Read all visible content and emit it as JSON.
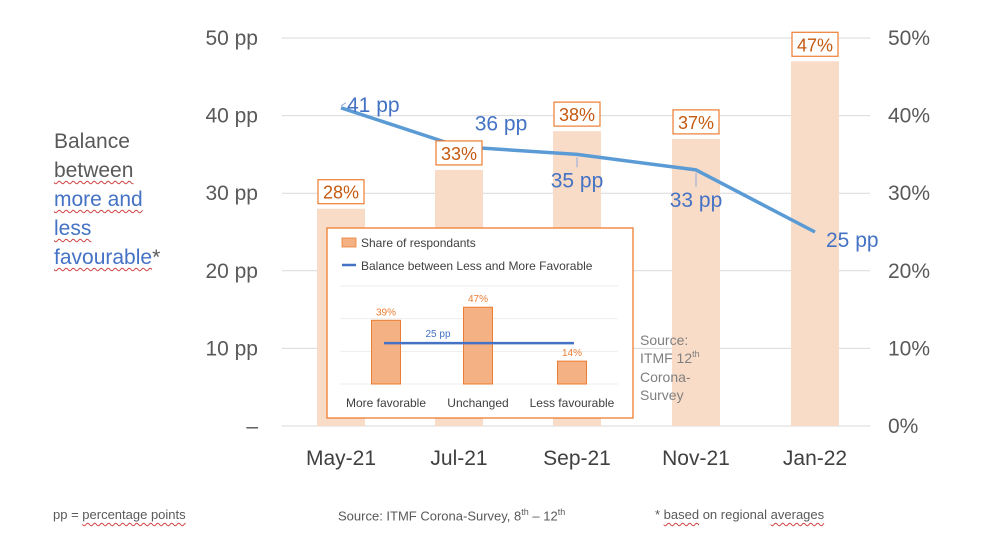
{
  "chart_data": {
    "type": "bar+line",
    "categories": [
      "May-21",
      "Jul-21",
      "Sep-21",
      "Nov-21",
      "Jan-22"
    ],
    "series": [
      {
        "values": [
          28,
          33,
          38,
          37,
          47
        ],
        "value_labels": [
          "28%",
          "33%",
          "38%",
          "37%",
          "47%"
        ],
        "axis": "right",
        "color": "#f9dcc8",
        "label_color": "#c55a11",
        "label_border": "#ed7d31"
      },
      {
        "values": [
          41,
          36,
          35,
          33,
          25
        ],
        "value_labels": [
          "41 pp",
          "36 pp",
          "35 pp",
          "33 pp",
          "25 pp"
        ],
        "axis": "left",
        "color": "#5b9bd5",
        "label_color": "#4472c4"
      }
    ],
    "left_axis": {
      "ticks": [
        "–",
        "10 pp",
        "20 pp",
        "30 pp",
        "40 pp",
        "50 pp"
      ],
      "ylim": [
        0,
        50
      ]
    },
    "right_axis": {
      "ticks": [
        "0%",
        "10%",
        "20%",
        "30%",
        "40%",
        "50%"
      ],
      "ylim": [
        0,
        50
      ]
    },
    "ylabel": {
      "line1": "Balance",
      "line2": "between",
      "line3": "more and",
      "line4": "less",
      "line5": "favourable",
      "suffix": "*"
    },
    "grid": true,
    "grid_color": "#d9d9d9",
    "inset": {
      "type": "bar+line",
      "legend": [
        {
          "label": "Share of respondants",
          "color": "#f4b183",
          "border": "#ed7d31"
        },
        {
          "label": "Balance between Less and More Favorable",
          "color": "#4472c4"
        }
      ],
      "categories": [
        "More favorable",
        "Unchanged",
        "Less favourable"
      ],
      "values": [
        39,
        47,
        14
      ],
      "value_labels": [
        "39%",
        "47%",
        "14%"
      ],
      "balance_label": "25 pp",
      "balance_value": 25,
      "ylim": [
        0,
        60
      ],
      "border_color": "#ed7d31"
    },
    "inset_source": {
      "line1": "Source:",
      "line2a": "ITMF 12",
      "line2b": "th",
      "line3": "Corona-",
      "line4": "Survey"
    }
  },
  "footer": {
    "note_a": "pp = ",
    "note_b": "percentage points",
    "source_a": "Source: ITMF Corona-Survey, 8",
    "source_sup1": "th",
    "source_b": " – 12",
    "source_sup2": "th",
    "regional_a": "* ",
    "regional_b": "based",
    "regional_c": " on regional ",
    "regional_d": "averages"
  }
}
